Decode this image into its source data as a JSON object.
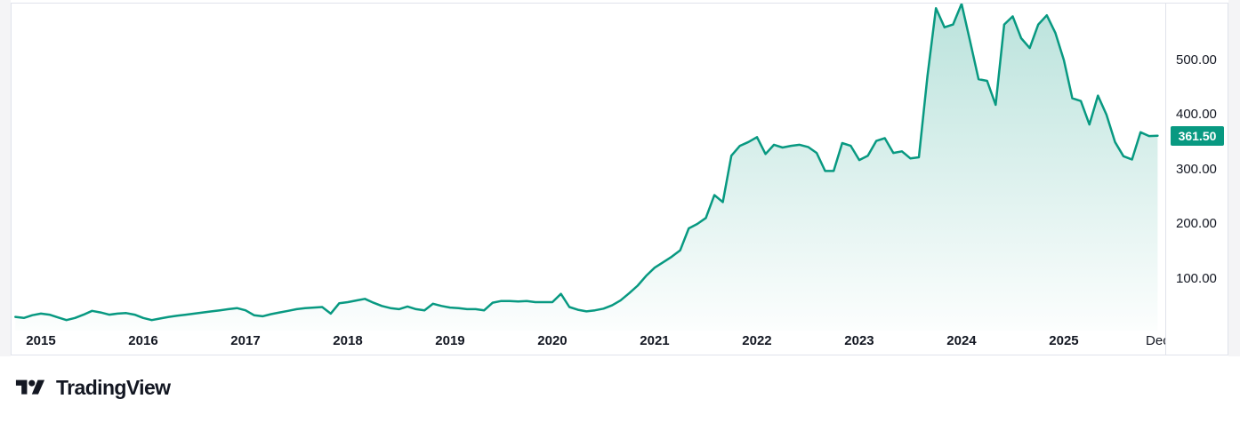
{
  "branding": {
    "logo_text": "TradingView",
    "logo_icon": "tradingview-icon"
  },
  "chart_data": {
    "type": "area",
    "title": "",
    "series_start": "2014-10",
    "frequency": "monthly",
    "values": [
      30,
      28,
      33,
      36,
      34,
      29,
      24,
      28,
      34,
      41,
      38,
      34,
      36,
      37,
      34,
      28,
      24,
      27,
      30,
      32,
      34,
      36,
      38,
      40,
      42,
      44,
      46,
      42,
      33,
      31,
      35,
      38,
      41,
      44,
      46,
      47,
      48,
      36,
      55,
      57,
      60,
      63,
      56,
      50,
      46,
      44,
      49,
      44,
      42,
      54,
      50,
      47,
      46,
      44,
      44,
      42,
      56,
      59,
      59,
      58,
      59,
      57,
      57,
      57,
      72,
      48,
      43,
      40,
      42,
      45,
      51,
      60,
      73,
      87,
      105,
      120,
      130,
      140,
      152,
      192,
      200,
      211,
      253,
      240,
      325,
      343,
      350,
      359,
      328,
      345,
      340,
      343,
      345,
      341,
      330,
      297,
      297,
      348,
      343,
      317,
      325,
      352,
      357,
      330,
      333,
      320,
      322,
      470,
      595,
      560,
      565,
      603,
      535,
      465,
      462,
      418,
      565,
      580,
      540,
      522,
      565,
      582,
      550,
      500,
      430,
      425,
      382,
      435,
      400,
      350,
      324,
      318,
      368,
      361,
      361.5
    ],
    "x_ticks": [
      {
        "label": "2015",
        "month_index": 3
      },
      {
        "label": "2016",
        "month_index": 15
      },
      {
        "label": "2017",
        "month_index": 27
      },
      {
        "label": "2018",
        "month_index": 39
      },
      {
        "label": "2019",
        "month_index": 51
      },
      {
        "label": "2020",
        "month_index": 63
      },
      {
        "label": "2021",
        "month_index": 75
      },
      {
        "label": "2022",
        "month_index": 87
      },
      {
        "label": "2023",
        "month_index": 99
      },
      {
        "label": "2024",
        "month_index": 111
      },
      {
        "label": "2025",
        "month_index": 123
      },
      {
        "label": "Dec",
        "month_index": 134,
        "minor": true
      }
    ],
    "y_axis": {
      "tick_values": [
        500,
        400,
        300,
        200,
        100
      ],
      "tick_labels": [
        "500.00",
        "400.00",
        "300.00",
        "200.00",
        "100.00"
      ],
      "range": [
        0,
        610
      ],
      "grid": false,
      "position": "right"
    },
    "last_price": {
      "value": 361.5,
      "label": "361.50"
    },
    "colors": {
      "line": "#089981",
      "fill_top": "rgba(8,153,129,0.28)",
      "fill_bottom": "rgba(8,153,129,0.01)",
      "badge_bg": "#089981",
      "badge_text": "#ffffff",
      "frame_border": "#e0e3eb",
      "axis_text": "#131722",
      "logo": "#131722"
    }
  }
}
